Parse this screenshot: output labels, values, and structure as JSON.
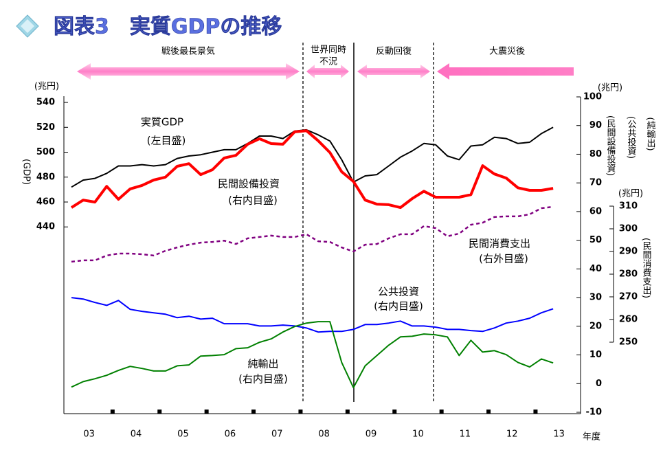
{
  "title": "図表3　実質GDPの推移",
  "chart_data": {
    "type": "line",
    "x_label": "年度",
    "categories": [
      "03",
      "03",
      "03",
      "03",
      "04",
      "04",
      "04",
      "04",
      "05",
      "05",
      "05",
      "05",
      "06",
      "06",
      "06",
      "06",
      "07",
      "07",
      "07",
      "07",
      "08",
      "08",
      "08",
      "08",
      "09",
      "09",
      "09",
      "09",
      "10",
      "10",
      "10",
      "10",
      "11",
      "11",
      "11",
      "11",
      "12",
      "12",
      "12",
      "12",
      "13",
      "13"
    ],
    "phases": [
      {
        "label": [
          "戦後最長景気"
        ]
      },
      {
        "label": [
          "世界同時",
          "不況"
        ]
      },
      {
        "label": [
          "反動回復"
        ]
      },
      {
        "label": [
          "大震災後"
        ]
      }
    ],
    "ylabel": "(兆円)",
    "ylabel_name": "(GDP)",
    "ylim": [
      290,
      545
    ],
    "yticks": [
      440,
      460,
      480,
      500,
      520,
      540
    ],
    "y2label": "(兆円)",
    "y2label_names": [
      "(民間設備投資)",
      "(公共投資)",
      "(純輸出)"
    ],
    "y2lim": [
      -10,
      100
    ],
    "y2ticks": [
      -10,
      0,
      10,
      20,
      30,
      40,
      50,
      60,
      70,
      80,
      90,
      100
    ],
    "y3label": "(兆円)",
    "y3label_name": "(民間消費支出)",
    "y3lim": [
      250,
      310
    ],
    "y3ticks": [
      250,
      260,
      270,
      280,
      290,
      300,
      310
    ],
    "series": [
      {
        "name": "実質GDP",
        "scale_label": "(左目盛)",
        "color": "#000000",
        "width": 2,
        "dashed": false,
        "axis": "y",
        "values": [
          472,
          477.6,
          479,
          483,
          489,
          489,
          490,
          489,
          490,
          495,
          497,
          498,
          500,
          502,
          502,
          507,
          513,
          513,
          511,
          517,
          518,
          514,
          509,
          494,
          476,
          481,
          482,
          489,
          496,
          501,
          507,
          506,
          497,
          494,
          505,
          506,
          512,
          511,
          507,
          508,
          515,
          520
        ]
      },
      {
        "name": "民間設備投資",
        "scale_label": "(右内目盛)",
        "color": "#ff0000",
        "width": 4,
        "dashed": false,
        "axis": "y2",
        "values": [
          61.4,
          64,
          63.3,
          68.8,
          64.3,
          67.9,
          69.1,
          71,
          72,
          75.8,
          76.7,
          72.9,
          74.6,
          78.7,
          79.6,
          83.5,
          85.4,
          83.7,
          83.5,
          87.8,
          88.2,
          84.7,
          80.6,
          73.9,
          70.5,
          64,
          62.6,
          62.4,
          61.4,
          64.5,
          67.1,
          65,
          65,
          65,
          65.9,
          76,
          73.1,
          71.7,
          68.3,
          67.4,
          67.4,
          68.1
        ]
      },
      {
        "name": "民間消費支出",
        "scale_label": "(右外目盛)",
        "color": "#800080",
        "width": 2.5,
        "dashed": true,
        "axis": "y3",
        "values": [
          285.5,
          286.1,
          286.1,
          288.2,
          289.1,
          289.1,
          288.8,
          288.2,
          290.3,
          291.8,
          293,
          293.9,
          294.2,
          294.8,
          293.3,
          295.8,
          296.4,
          297,
          296.4,
          296.4,
          297.6,
          294.5,
          294.2,
          291.8,
          290,
          293,
          293.3,
          295.8,
          297.6,
          297.6,
          301.2,
          300.3,
          296.7,
          297.9,
          301.8,
          302.7,
          305.2,
          305.5,
          305.5,
          306.4,
          309.1,
          309.7
        ]
      },
      {
        "name": "公共投資",
        "scale_label": "(右内目盛)",
        "color": "#0000ff",
        "width": 2,
        "dashed": false,
        "axis": "y2",
        "values": [
          30,
          29.5,
          28.3,
          27.3,
          29,
          25.9,
          25.2,
          24.7,
          24.2,
          23,
          23.5,
          22.5,
          22.8,
          20.9,
          20.9,
          20.9,
          20.1,
          20.1,
          20.4,
          20.1,
          19.4,
          18,
          18.2,
          18.2,
          18.9,
          20.6,
          20.6,
          21.1,
          21.8,
          20.1,
          20.1,
          19.7,
          18.9,
          18.9,
          18.5,
          18.2,
          19.4,
          21.1,
          21.8,
          22.8,
          24.7,
          26.1
        ]
      },
      {
        "name": "純輸出",
        "scale_label": "(右内目盛)",
        "color": "#008000",
        "width": 2,
        "dashed": false,
        "axis": "y2",
        "values": [
          -1.2,
          0.7,
          1.7,
          2.9,
          4.6,
          6,
          5.3,
          4.4,
          4.4,
          6.2,
          6.5,
          9.6,
          9.8,
          10.1,
          12.2,
          12.5,
          14.4,
          15.6,
          18,
          19.9,
          21.1,
          21.6,
          21.6,
          7.4,
          -1.4,
          6.2,
          9.8,
          13.4,
          16.3,
          16.5,
          17.3,
          17,
          16.3,
          9.8,
          15.1,
          11,
          11.5,
          10.1,
          7.4,
          5.8,
          8.6,
          7.2
        ]
      }
    ]
  }
}
